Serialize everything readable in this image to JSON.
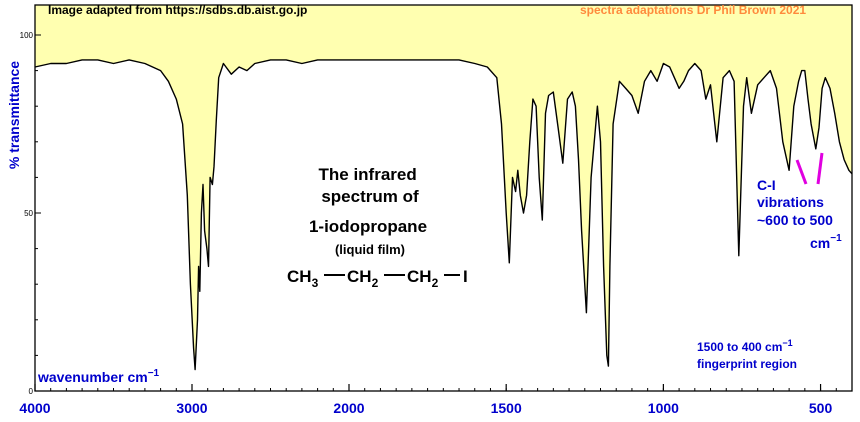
{
  "chart_data": {
    "type": "line",
    "title": "The infrared spectrum of",
    "compound_name": "1-iodopropane",
    "sample_state": "(liquid film)",
    "formula_parts": {
      "ch3": "CH",
      "ch2": "CH",
      "sub3": "3",
      "sub2": "2",
      "iodine": "I"
    },
    "header_left": "Image adapted from https://sdbs.db.aist.go.jp",
    "header_right": "spectra adaptations Dr Phil Brown 2021",
    "ylabel": "% transmittance",
    "xlabel": "wavenumber cm",
    "xlabel_sup": "−1",
    "x_ticks": [
      "4000",
      "3000",
      "2000",
      "1500",
      "1000",
      "500"
    ],
    "y_ticks": [
      "100",
      "50",
      "0"
    ],
    "x_scale": "4000-2000 at half the scale of 2000-400",
    "xlim": [
      4000,
      400
    ],
    "ylim": [
      0,
      100
    ],
    "colors": {
      "fill": "#ffffb0",
      "trace": "#000000",
      "axis_text": "#0000cc",
      "annotation": "#0000cc",
      "tick_pink": "#e000e0",
      "credit": "#ff8a3c"
    },
    "annotations": {
      "ci_line1": "C-I",
      "ci_line2": "vibrations",
      "ci_line3": "~600 to 500",
      "ci_line4": "cm",
      "ci_sup": "−1",
      "fp_line1": "1500 to 400 cm",
      "fp_sup": "−1",
      "fp_line2": "fingerprint region"
    },
    "series": [
      {
        "x": [
          4000,
          3900,
          3800,
          3700,
          3600,
          3500,
          3400,
          3300,
          3200,
          3150,
          3100,
          3060,
          3030,
          3010,
          2990,
          2980,
          2965,
          2958,
          2950,
          2940,
          2930,
          2920,
          2905,
          2895,
          2885,
          2870,
          2860,
          2845,
          2830,
          2800,
          2750,
          2700,
          2650,
          2600,
          2500,
          2400,
          2300,
          2200,
          2100,
          2000,
          1950,
          1900,
          1850,
          1800,
          1750,
          1700,
          1650,
          1600,
          1560,
          1530,
          1515,
          1500,
          1490,
          1480,
          1470,
          1463,
          1455,
          1445,
          1435,
          1425,
          1415,
          1405,
          1395,
          1385,
          1375,
          1365,
          1350,
          1335,
          1320,
          1305,
          1290,
          1280,
          1270,
          1260,
          1245,
          1230,
          1210,
          1200,
          1190,
          1180,
          1175,
          1170,
          1160,
          1140,
          1120,
          1100,
          1080,
          1060,
          1040,
          1020,
          1000,
          980,
          965,
          950,
          935,
          920,
          900,
          880,
          865,
          850,
          830,
          810,
          790,
          775,
          760,
          745,
          735,
          720,
          700,
          680,
          660,
          640,
          620,
          600,
          585,
          570,
          560,
          550,
          540,
          530,
          515,
          505,
          495,
          485,
          470,
          455,
          440,
          425,
          410,
          400
        ],
        "y": [
          91,
          92,
          92,
          93,
          93,
          92,
          93,
          92,
          90,
          87,
          82,
          75,
          55,
          30,
          12,
          6,
          20,
          35,
          28,
          50,
          58,
          45,
          40,
          35,
          60,
          58,
          63,
          76,
          88,
          92,
          89,
          91,
          90,
          92,
          93,
          93,
          92,
          93,
          93,
          93,
          93,
          93,
          93,
          93,
          93,
          93,
          93,
          92,
          91,
          88,
          75,
          50,
          36,
          60,
          56,
          62,
          55,
          50,
          55,
          70,
          82,
          80,
          60,
          48,
          78,
          83,
          84,
          74,
          64,
          82,
          84,
          80,
          65,
          45,
          22,
          60,
          80,
          70,
          35,
          10,
          7,
          35,
          75,
          87,
          85,
          83,
          78,
          87,
          90,
          87,
          92,
          91,
          88,
          85,
          87,
          90,
          92,
          90,
          82,
          86,
          70,
          88,
          90,
          87,
          38,
          80,
          88,
          78,
          86,
          88,
          90,
          85,
          70,
          62,
          80,
          87,
          90,
          90,
          82,
          75,
          68,
          74,
          85,
          88,
          85,
          78,
          70,
          65,
          62,
          61
        ]
      }
    ]
  }
}
